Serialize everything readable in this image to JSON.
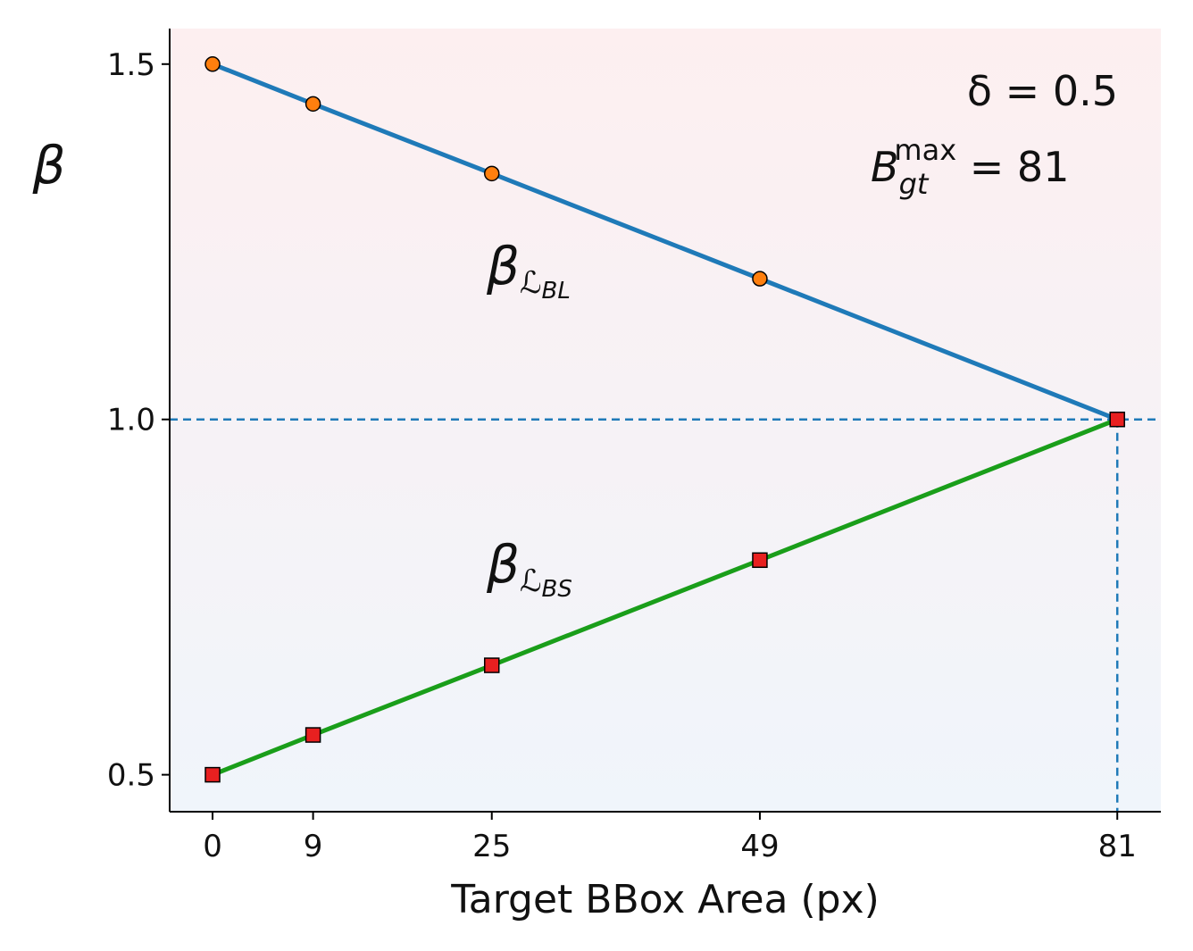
{
  "chart_data": {
    "type": "line",
    "x_label": "Target BBox Area (px)",
    "y_label": "β",
    "x": [
      0,
      9,
      25,
      49,
      81
    ],
    "series": [
      {
        "name": "β",
        "label_sub": "ℒ",
        "label_subsub": "BL",
        "color": "#1f7ab8",
        "marker": "circle",
        "marker_color": "#ff7f0e",
        "marker_points": 4,
        "values": [
          1.5,
          1.444,
          1.346,
          1.198,
          1.0
        ]
      },
      {
        "name": "β",
        "label_sub": "ℒ",
        "label_subsub": "BS",
        "color": "#1a9e1a",
        "marker": "square",
        "marker_color": "#e82020",
        "marker_points": 5,
        "values": [
          0.5,
          0.556,
          0.654,
          0.802,
          1.0
        ]
      }
    ],
    "annotations": [
      {
        "parts": [
          "δ = 0.5"
        ]
      },
      {
        "parts": [
          "B",
          "gt",
          "max",
          " = 81"
        ]
      }
    ],
    "reference_lines": {
      "y": 1.0,
      "x": 81
    },
    "xlim": [
      -3.84,
      84.9
    ],
    "ylim": [
      0.448,
      1.55
    ],
    "xticks": [
      0,
      9,
      25,
      49,
      81
    ],
    "yticks": [
      0.5,
      {
        "value": 1.0,
        "label": "1.0"
      },
      1.5
    ]
  }
}
